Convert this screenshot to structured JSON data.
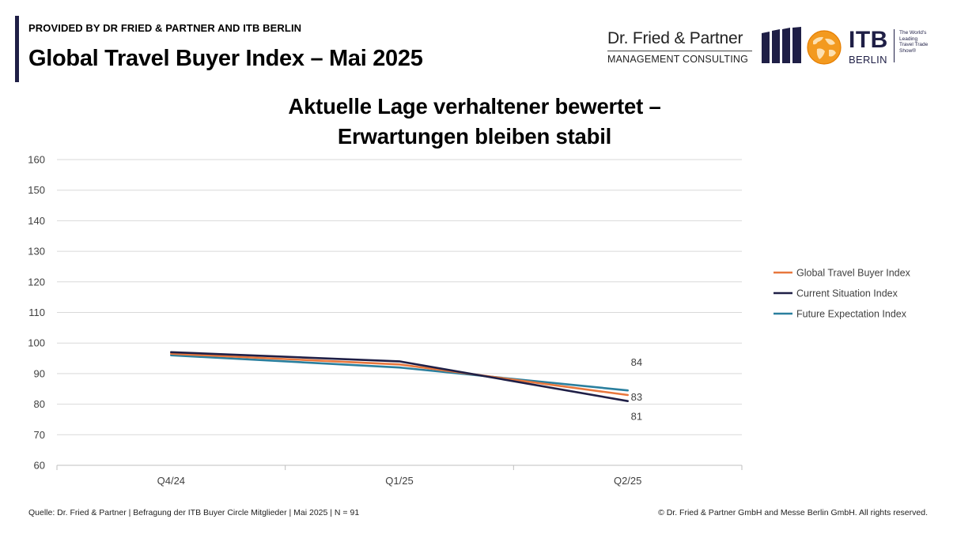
{
  "header": {
    "provided_by": "PROVIDED BY DR FRIED & PARTNER AND ITB BERLIN",
    "title": "Global Travel Buyer Index – Mai 2025"
  },
  "logos": {
    "df_name": "Dr. Fried & Partner",
    "df_sub": "MANAGEMENT CONSULTING",
    "itb": "ITB",
    "itb_city": "BERLIN",
    "itb_tag": [
      "The World's",
      "Leading",
      "Travel Trade",
      "Show®"
    ]
  },
  "chart_title": {
    "line1": "Aktuelle Lage verhaltener bewertet –",
    "line2": "Erwartungen bleiben stabil"
  },
  "chart_data": {
    "type": "line",
    "title": "Aktuelle Lage verhaltener bewertet – Erwartungen bleiben stabil",
    "categories": [
      "Q4/24",
      "Q1/25",
      "Q2/25"
    ],
    "ylim": [
      60,
      160
    ],
    "yticks": [
      60,
      70,
      80,
      90,
      100,
      110,
      120,
      130,
      140,
      150,
      160
    ],
    "grid": true,
    "legend_position": "right",
    "series": [
      {
        "name": "Global Travel Buyer Index",
        "values": [
          96.5,
          93,
          83
        ],
        "color": "#e8773d",
        "end_label": "83"
      },
      {
        "name": "Current Situation Index",
        "values": [
          97,
          94,
          81
        ],
        "color": "#1f1f46",
        "end_label": "81"
      },
      {
        "name": "Future Expectation Index",
        "values": [
          96,
          92,
          84.5
        ],
        "color": "#2a7f9e",
        "end_label": "84"
      }
    ]
  },
  "footer": {
    "source": "Quelle: Dr. Fried & Partner | Befragung der ITB Buyer Circle Mitglieder | Mai 2025 | N = 91",
    "copyright": "© Dr. Fried & Partner GmbH and Messe Berlin GmbH. All rights reserved."
  }
}
